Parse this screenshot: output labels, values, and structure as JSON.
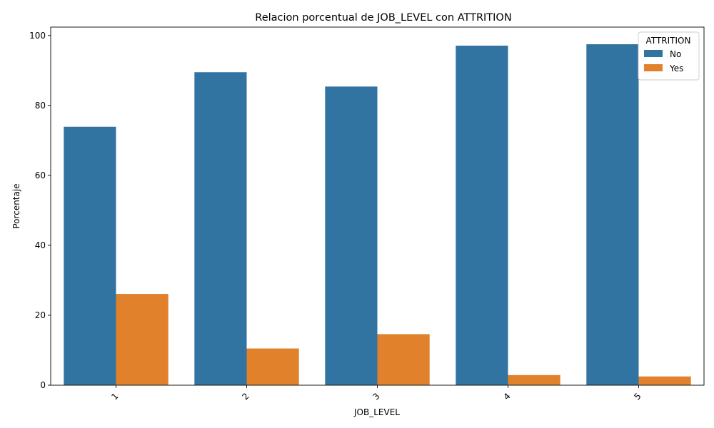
{
  "chart_data": {
    "type": "bar",
    "title": "Relacion porcentual de JOB_LEVEL con ATTRITION",
    "xlabel": "JOB_LEVEL",
    "ylabel": "Porcentaje",
    "categories": [
      "1",
      "2",
      "3",
      "4",
      "5"
    ],
    "series": [
      {
        "name": "No",
        "color": "#3274a1",
        "values": [
          73.9,
          89.5,
          85.4,
          97.1,
          97.5
        ]
      },
      {
        "name": "Yes",
        "color": "#e1812c",
        "values": [
          26.1,
          10.5,
          14.6,
          2.9,
          2.5
        ]
      }
    ],
    "ylim": [
      0,
      102.4
    ],
    "yticks": [
      0,
      20,
      40,
      60,
      80,
      100
    ],
    "grid": false,
    "legend": {
      "title": "ATTRITION",
      "placement": "top-right"
    }
  }
}
